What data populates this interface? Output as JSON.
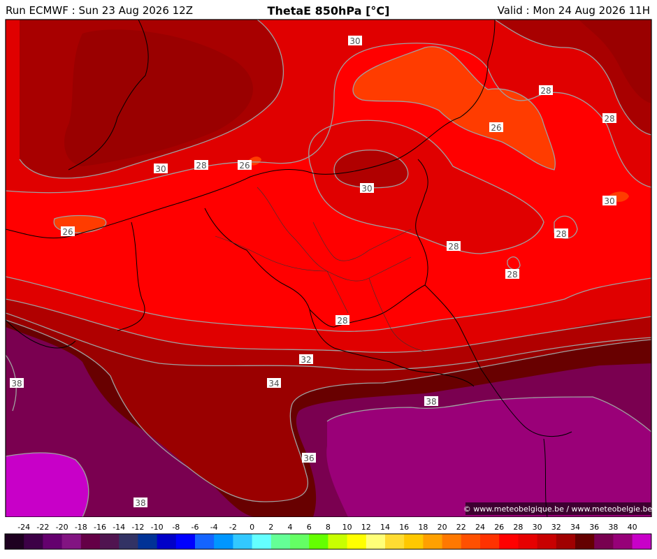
{
  "header": {
    "run": "Run ECMWF : Sun 23 Aug 2026 12Z",
    "title": "ThetaE 850hPa [°C]",
    "valid": "Valid : Mon 24 Aug 2026 11H"
  },
  "credit": "© www.meteobelgique.be / www.meteobelgie.be",
  "contour_labels": [
    "30",
    "28",
    "28",
    "26",
    "30",
    "28",
    "26",
    "30",
    "30",
    "28",
    "26",
    "28",
    "28",
    "26",
    "28",
    "32",
    "34",
    "38",
    "38",
    "36",
    "38"
  ],
  "colorbar": {
    "ticks": [
      "-24",
      "-22",
      "-20",
      "-18",
      "-16",
      "-14",
      "-12",
      "-10",
      "-8",
      "-6",
      "-4",
      "-2",
      "0",
      "2",
      "4",
      "6",
      "8",
      "10",
      "12",
      "14",
      "16",
      "18",
      "20",
      "22",
      "24",
      "26",
      "28",
      "30",
      "32",
      "34",
      "36",
      "38",
      "40"
    ],
    "colors": [
      "#1e0020",
      "#3c0046",
      "#64006e",
      "#821482",
      "#640046",
      "#501450",
      "#323264",
      "#003296",
      "#0000c8",
      "#0000ff",
      "#1464ff",
      "#0096ff",
      "#32c8ff",
      "#64ffff",
      "#64ff96",
      "#64ff64",
      "#64ff00",
      "#c8ff00",
      "#ffff00",
      "#ffff78",
      "#ffdc32",
      "#ffc800",
      "#ffa000",
      "#ff7800",
      "#ff5000",
      "#ff3200",
      "#ff0000",
      "#e60000",
      "#c80000",
      "#a00000",
      "#640000",
      "#780050",
      "#960078",
      "#c800c8"
    ]
  }
}
